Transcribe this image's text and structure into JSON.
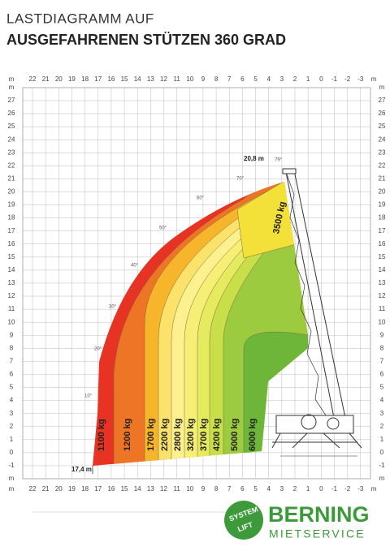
{
  "header": {
    "title": "LASTDIAGRAMM AUF",
    "subtitle": "AUSGEFAHRENEN STÜTZEN 360 GRAD"
  },
  "axes": {
    "unit": "m",
    "x_ticks": [
      "22",
      "21",
      "20",
      "19",
      "18",
      "17",
      "16",
      "15",
      "14",
      "13",
      "12",
      "11",
      "10",
      "9",
      "8",
      "7",
      "6",
      "5",
      "4",
      "3",
      "2",
      "1",
      "0",
      "-1",
      "-2",
      "-3"
    ],
    "y_ticks": [
      "27",
      "26",
      "25",
      "24",
      "23",
      "22",
      "21",
      "20",
      "19",
      "18",
      "17",
      "16",
      "15",
      "14",
      "13",
      "12",
      "11",
      "10",
      "9",
      "8",
      "7",
      "6",
      "5",
      "4",
      "3",
      "2",
      "1",
      "0",
      "-1"
    ]
  },
  "zones": [
    {
      "label": "1100 kg"
    },
    {
      "label": "1200 kg"
    },
    {
      "label": "1700 kg"
    },
    {
      "label": "2200 kg"
    },
    {
      "label": "2800 kg"
    },
    {
      "label": "3200 kg"
    },
    {
      "label": "3700 kg"
    },
    {
      "label": "4200 kg"
    },
    {
      "label": "5000 kg"
    },
    {
      "label": "6000 kg"
    },
    {
      "label": "3500 kg"
    }
  ],
  "angles": [
    "10°",
    "20°",
    "30°",
    "40°",
    "50°",
    "60°",
    "70°",
    "79°"
  ],
  "annotations": {
    "max_height": "20,8 m",
    "max_reach": "17,4 m"
  },
  "logo": {
    "badge_top": "SYSTEM",
    "badge_bottom": "LIFT",
    "brand": "BERNING",
    "tagline": "MIETSERVICE"
  }
}
